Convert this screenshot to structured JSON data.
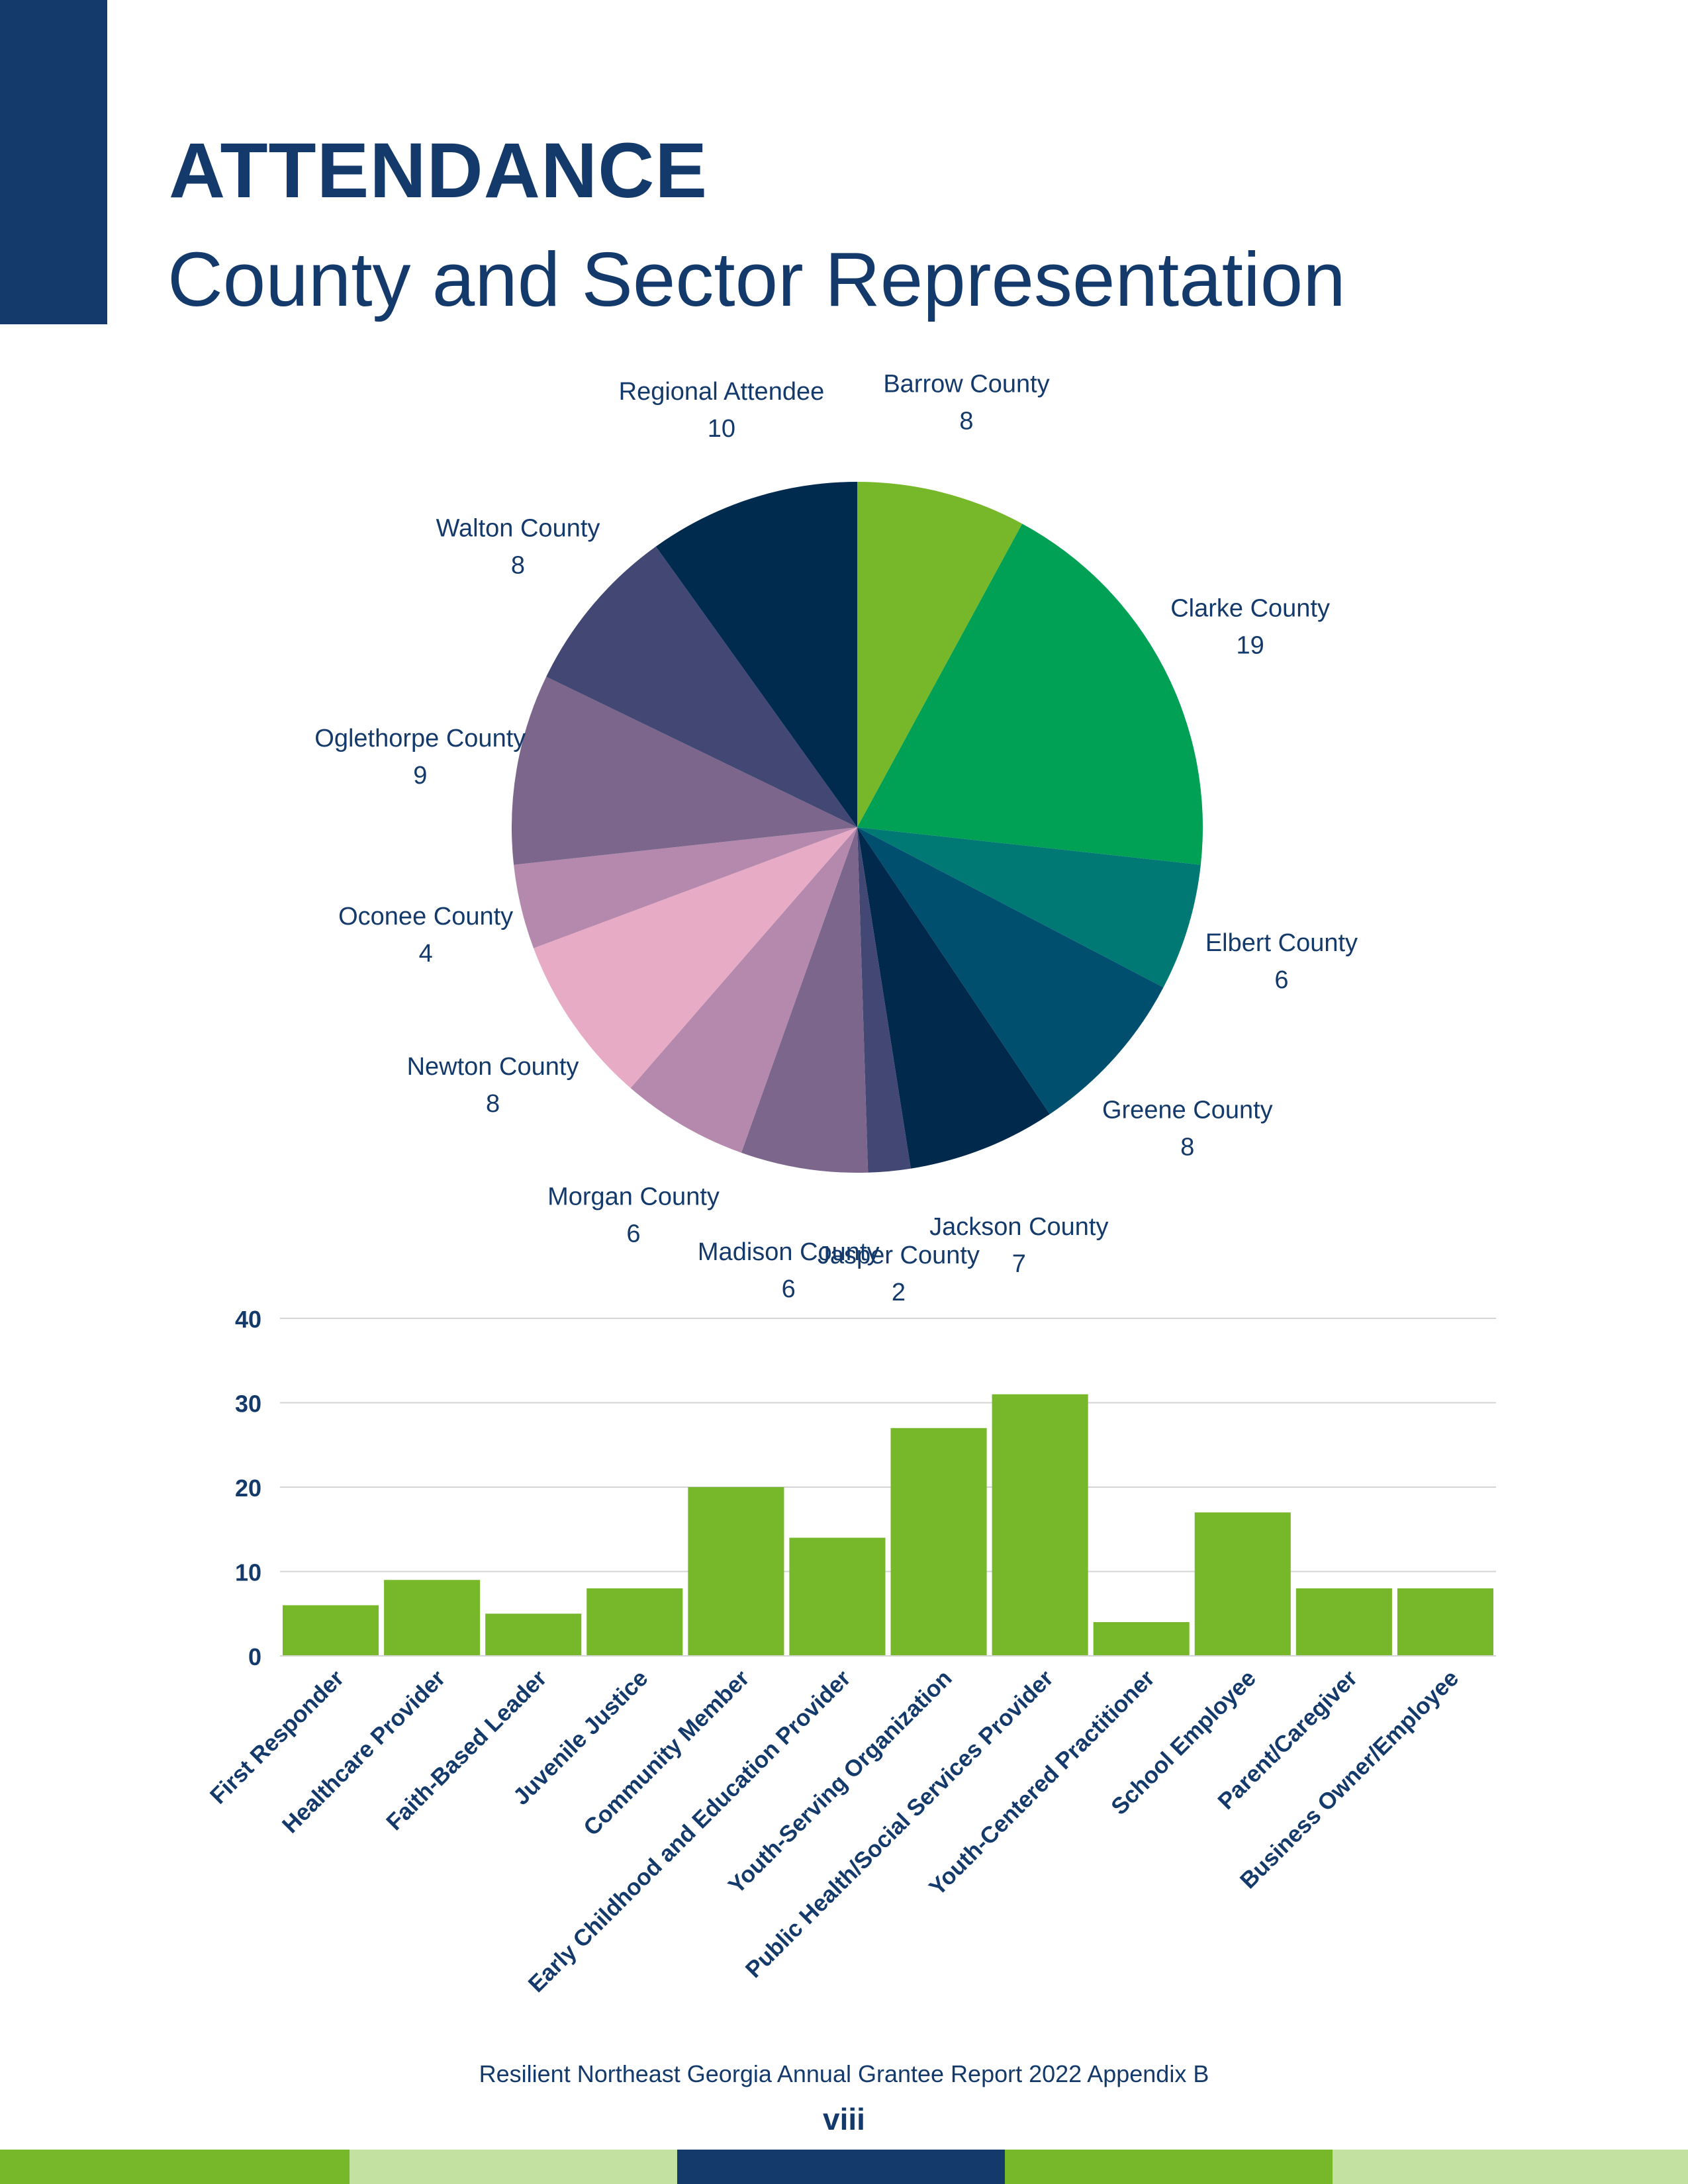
{
  "header": {
    "title": "ATTENDANCE",
    "subtitle": "County and Sector Representation"
  },
  "colors": {
    "brand_navy": "#143a6b",
    "accent_green": "#77b82a",
    "light_green": "#c3e2a2"
  },
  "chart_data": [
    {
      "type": "pie",
      "title": "",
      "slices": [
        {
          "label": "Barrow County",
          "value": 8,
          "color": "#77b82a"
        },
        {
          "label": "Clarke County",
          "value": 19,
          "color": "#00a055"
        },
        {
          "label": "Elbert County",
          "value": 6,
          "color": "#007874"
        },
        {
          "label": "Greene County",
          "value": 8,
          "color": "#004f6e"
        },
        {
          "label": "Jackson County",
          "value": 7,
          "color": "#00294b"
        },
        {
          "label": "Jasper County",
          "value": 2,
          "color": "#434773"
        },
        {
          "label": "Madison County",
          "value": 6,
          "color": "#7c668c"
        },
        {
          "label": "Morgan County",
          "value": 6,
          "color": "#b489ad"
        },
        {
          "label": "Newton County",
          "value": 8,
          "color": "#e8abc5"
        },
        {
          "label": "Oconee County",
          "value": 4,
          "color": "#b489ad"
        },
        {
          "label": "Oglethorpe County",
          "value": 9,
          "color": "#7c668c"
        },
        {
          "label": "Walton County",
          "value": 8,
          "color": "#434773"
        },
        {
          "label": "Regional Attendee",
          "value": 10,
          "color": "#002b4e"
        }
      ]
    },
    {
      "type": "bar",
      "title": "",
      "xlabel": "",
      "ylabel": "",
      "ylim": [
        0,
        40
      ],
      "yticks": [
        0,
        10,
        20,
        30,
        40
      ],
      "grid": true,
      "bar_color": "#77b82a",
      "categories": [
        "First Responder",
        "Healthcare Provider",
        "Faith-Based Leader",
        "Juvenile Justice",
        "Community Member",
        "Early Childhood and Education Provider",
        "Youth-Serving Organization",
        "Public Health/Social Services Provider",
        "Youth-Centered Practitioner",
        "School Employee",
        "Parent/Caregiver",
        "Business Owner/Employee"
      ],
      "values": [
        6,
        9,
        5,
        8,
        20,
        14,
        27,
        31,
        4,
        17,
        8,
        8
      ]
    }
  ],
  "footer": {
    "report_title": "Resilient Northeast Georgia Annual Grantee Report 2022 Appendix B",
    "page_number": "viii"
  }
}
